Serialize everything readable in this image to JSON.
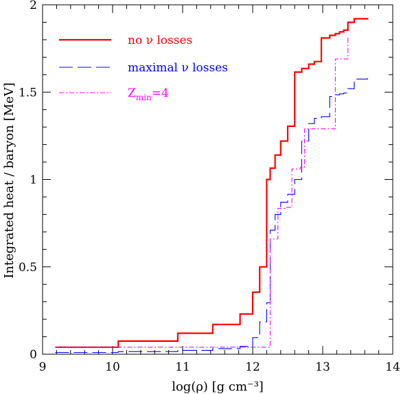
{
  "chart_data": {
    "type": "line",
    "xlabel": "log(ρ) [g cm⁻³]",
    "ylabel": "Integrated heat / baryon [MeV]",
    "xlim": [
      9,
      14
    ],
    "ylim": [
      0,
      2
    ],
    "xticks": [
      9,
      10,
      11,
      12,
      13,
      14
    ],
    "yticks": [
      0,
      0.5,
      1,
      1.5,
      2
    ],
    "ytick_labels": [
      "0",
      "0.5",
      "1",
      "1.5",
      "2"
    ],
    "grid": false,
    "legend_position": "top-left",
    "series": [
      {
        "name": "no ν losses",
        "color": "#ff0000",
        "style": "solid",
        "x": [
          9.18,
          10.08,
          10.93,
          11.43,
          11.82,
          12.0,
          12.1,
          12.2,
          12.25,
          12.32,
          12.4,
          12.5,
          12.6,
          12.7,
          12.8,
          12.88,
          12.98,
          13.1,
          13.18,
          13.24,
          13.3,
          13.36,
          13.45,
          13.64
        ],
        "y": [
          0.04,
          0.075,
          0.12,
          0.17,
          0.23,
          0.355,
          0.5,
          1.0,
          1.065,
          1.14,
          1.22,
          1.305,
          1.615,
          1.635,
          1.66,
          1.675,
          1.81,
          1.825,
          1.835,
          1.845,
          1.855,
          1.9,
          1.92,
          1.925
        ]
      },
      {
        "name": "maximal ν losses",
        "color": "#0000ff",
        "style": "dashed",
        "x": [
          9.18,
          10.08,
          10.93,
          11.43,
          11.82,
          12.0,
          12.1,
          12.2,
          12.25,
          12.32,
          12.4,
          12.5,
          12.6,
          12.7,
          12.8,
          12.88,
          12.98,
          13.1,
          13.18,
          13.24,
          13.3,
          13.36,
          13.45,
          13.64
        ],
        "y": [
          0.01,
          0.015,
          0.022,
          0.032,
          0.045,
          0.095,
          0.185,
          0.295,
          0.71,
          0.8,
          0.87,
          0.915,
          1.0,
          1.22,
          1.32,
          1.35,
          1.36,
          1.475,
          1.485,
          1.49,
          1.495,
          1.52,
          1.575,
          1.58
        ]
      },
      {
        "name": "Z_min=4",
        "color": "#ff00ff",
        "style": "dashdot",
        "x": [
          9.18,
          12.2,
          12.25,
          12.36,
          12.46,
          12.56,
          12.68,
          12.74,
          12.98,
          13.18,
          13.36
        ],
        "y": [
          0.04,
          0.04,
          0.66,
          0.835,
          0.84,
          1.06,
          1.07,
          1.29,
          1.29,
          1.69,
          1.815
        ]
      }
    ],
    "legend": [
      {
        "label": "no ν losses",
        "color": "#ff0000",
        "style": "solid"
      },
      {
        "label": "maximal ν losses",
        "color": "#0000ff",
        "style": "dashed"
      },
      {
        "label_main": "Z",
        "label_sub": "min",
        "label_rest": "=4",
        "color": "#ff00ff",
        "style": "dashdot"
      }
    ]
  }
}
